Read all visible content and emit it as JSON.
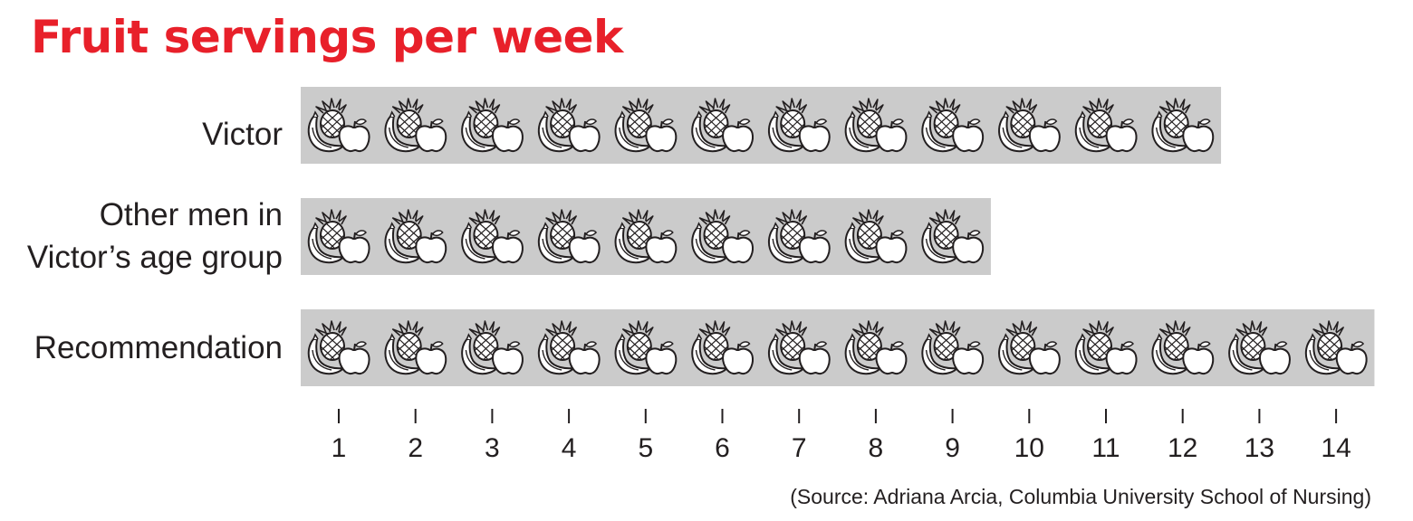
{
  "chart_data": {
    "type": "bar",
    "title": "Fruit servings per week",
    "categories": [
      "Victor",
      [
        "Other men in",
        "Victor’s age group"
      ],
      "Recommendation"
    ],
    "values": [
      12,
      9,
      14
    ],
    "x_ticks": [
      "1",
      "2",
      "3",
      "4",
      "5",
      "6",
      "7",
      "8",
      "9",
      "10",
      "11",
      "12",
      "13",
      "14"
    ],
    "xlim": [
      0.5,
      14.5
    ],
    "bar_color": "#cbcbcb",
    "icon": "fruit-icon",
    "grid": false,
    "legend": "none",
    "source": "(Source: Adriana Arcia, Columbia University School of Nursing)"
  }
}
